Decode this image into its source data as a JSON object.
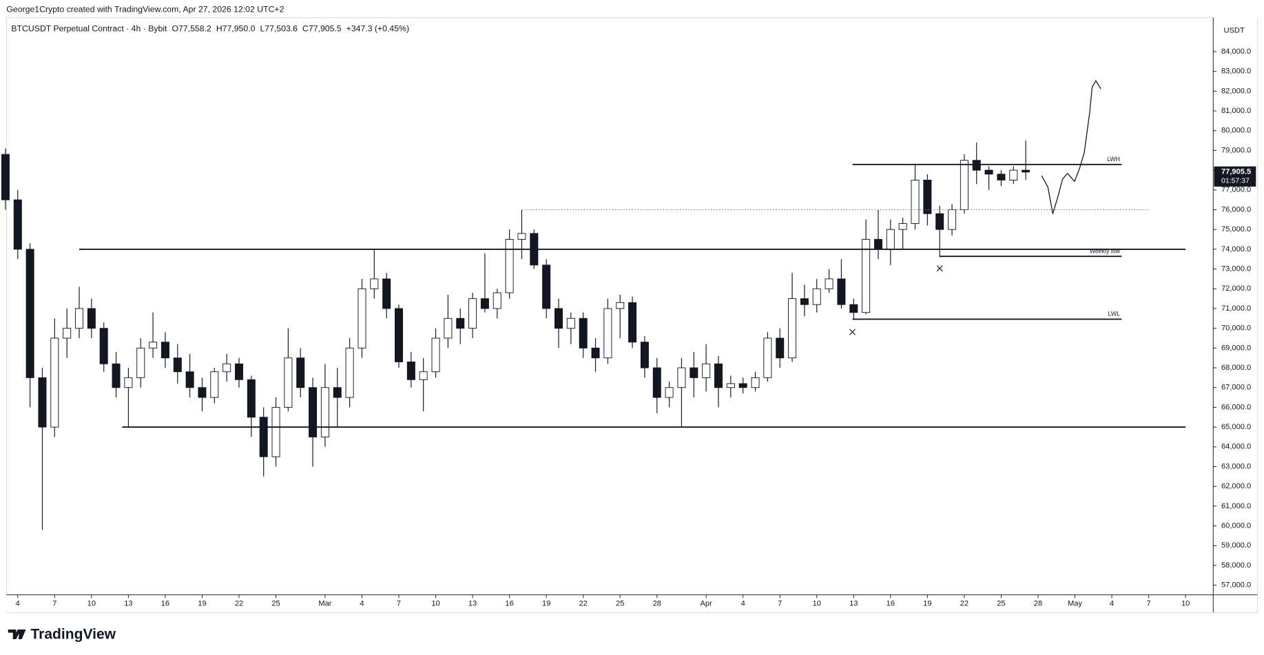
{
  "header": {
    "credit": "George1Crypto created with TradingView.com, Apr 27, 2026 12:02 UTC+2",
    "symbol": "BTCUSDT Perpetual Contract · 4h · Bybit",
    "ohlc": [
      "O77,558.2",
      "H77,950.0",
      "L77,503.6",
      "C77,905.5",
      "+347.3 (+0.45%)"
    ],
    "currency": "USDT",
    "logo": "TradingView"
  },
  "chart_data": {
    "type": "candlestick",
    "x": [
      3,
      4,
      5,
      6,
      7,
      8,
      9,
      10,
      11,
      12,
      13,
      14,
      15,
      16,
      17,
      18,
      19,
      20,
      21,
      22,
      23,
      24,
      25,
      26,
      27,
      28,
      29,
      30,
      31,
      32,
      33,
      34,
      35,
      36,
      37,
      38,
      39,
      40,
      41,
      42,
      43,
      44,
      45,
      46,
      47,
      48,
      49,
      50,
      51,
      52,
      53,
      54,
      55,
      56,
      57,
      58,
      59,
      60,
      61,
      62,
      63,
      64,
      65,
      66,
      67,
      68,
      69,
      70,
      71,
      72,
      73,
      74,
      75,
      76,
      77,
      78,
      79,
      80,
      81,
      82,
      83,
      84,
      85,
      86
    ],
    "open": [
      78800,
      76500,
      74000,
      67500,
      65000,
      69500,
      70000,
      71000,
      70000,
      68200,
      67000,
      67500,
      69000,
      69300,
      68500,
      67800,
      67000,
      66500,
      67800,
      68200,
      67400,
      65500,
      63500,
      66000,
      68500,
      67000,
      64500,
      67000,
      66500,
      69000,
      72000,
      72500,
      71000,
      68300,
      67400,
      67800,
      69500,
      70500,
      70000,
      71500,
      71000,
      71800,
      74500,
      74800,
      73200,
      71000,
      70000,
      70500,
      69000,
      68500,
      71000,
      71300,
      69300,
      68000,
      66500,
      67000,
      68000,
      67500,
      68200,
      67000,
      67200,
      67000,
      67500,
      69500,
      68500,
      71500,
      71200,
      72000,
      72500,
      71200,
      70800,
      74500,
      74000,
      75000,
      75300,
      77500,
      75800,
      75000,
      76000,
      78500,
      78000,
      77800,
      77500,
      78000
    ],
    "high": [
      79100,
      77000,
      74300,
      68000,
      70500,
      71000,
      72100,
      71500,
      70300,
      68800,
      68000,
      69500,
      70800,
      69800,
      69200,
      68700,
      67500,
      68000,
      68700,
      68500,
      67600,
      66000,
      66500,
      70000,
      69000,
      67500,
      68200,
      68000,
      69500,
      72500,
      74000,
      72800,
      71200,
      68800,
      68500,
      70000,
      71700,
      71000,
      71800,
      73800,
      72000,
      75000,
      76000,
      75000,
      73500,
      71500,
      70800,
      70800,
      69500,
      71500,
      71700,
      71600,
      69600,
      68500,
      67300,
      68500,
      68800,
      69200,
      68600,
      67600,
      67500,
      67800,
      69800,
      70000,
      72800,
      72200,
      72500,
      73000,
      73500,
      71500,
      75500,
      76000,
      75500,
      75600,
      78300,
      77800,
      76200,
      76300,
      78800,
      79400,
      78200,
      78000,
      78200,
      79500
    ],
    "low": [
      76000,
      73500,
      66000,
      59800,
      64500,
      68500,
      69500,
      69500,
      67800,
      66500,
      65000,
      67000,
      68500,
      68000,
      67200,
      66500,
      65800,
      66200,
      67300,
      67000,
      64500,
      62500,
      63000,
      65800,
      66500,
      63000,
      64000,
      65000,
      66000,
      68500,
      71500,
      70500,
      68000,
      67000,
      65800,
      67500,
      69000,
      69200,
      69500,
      70800,
      70500,
      71500,
      73500,
      73000,
      70500,
      69000,
      69200,
      68500,
      67800,
      68200,
      69500,
      69000,
      67500,
      65700,
      66000,
      65000,
      66500,
      66800,
      66000,
      66500,
      66700,
      66800,
      67300,
      68000,
      68300,
      70600,
      70800,
      71800,
      71000,
      70500,
      70700,
      73500,
      73200,
      74000,
      75000,
      75200,
      73600,
      74700,
      75800,
      77300,
      77000,
      77200,
      77300,
      77500
    ],
    "close": [
      76500,
      74000,
      67500,
      65000,
      69500,
      70000,
      71000,
      70000,
      68200,
      67000,
      67500,
      69000,
      69300,
      68500,
      67800,
      67000,
      66500,
      67800,
      68200,
      67400,
      65500,
      63500,
      66000,
      68500,
      67000,
      64500,
      67000,
      66500,
      69000,
      72000,
      72500,
      71000,
      68300,
      67400,
      67800,
      69500,
      70500,
      70000,
      71500,
      71000,
      71800,
      74500,
      74800,
      73200,
      71000,
      70000,
      70500,
      69000,
      68500,
      71000,
      71300,
      69300,
      68000,
      66500,
      67000,
      68000,
      67500,
      68200,
      67000,
      67200,
      67000,
      67500,
      69500,
      68500,
      71500,
      71200,
      72000,
      72500,
      71200,
      70800,
      74500,
      74000,
      75000,
      75300,
      77500,
      75800,
      75000,
      76000,
      78500,
      78000,
      77800,
      77500,
      78000,
      77905.5
    ],
    "up_color": "#ffffff",
    "down_color": "#131722",
    "wick_color": "#131722",
    "xlim": [
      3.08,
      101.25
    ],
    "ylim": [
      56510,
      85715
    ],
    "xticks": [
      4,
      7,
      10,
      13,
      16,
      19,
      22,
      25,
      {
        "value": 29,
        "label": "Mar"
      },
      {
        "value": 32,
        "label": "4"
      },
      {
        "value": 35,
        "label": "7"
      },
      {
        "value": 38,
        "label": "10"
      },
      {
        "value": 41,
        "label": "13"
      },
      {
        "value": 44,
        "label": "16"
      },
      {
        "value": 47,
        "label": "19"
      },
      {
        "value": 50,
        "label": "22"
      },
      {
        "value": 53,
        "label": "25"
      },
      {
        "value": 56,
        "label": "28"
      },
      {
        "value": 60,
        "label": "Apr"
      },
      {
        "value": 63,
        "label": "4"
      },
      {
        "value": 66,
        "label": "7"
      },
      {
        "value": 69,
        "label": "10"
      },
      {
        "value": 72,
        "label": "13"
      },
      {
        "value": 75,
        "label": "16"
      },
      {
        "value": 78,
        "label": "19"
      },
      {
        "value": 81,
        "label": "22"
      },
      {
        "value": 84,
        "label": "25"
      },
      {
        "value": 87,
        "label": "28"
      },
      {
        "value": 90,
        "label": "May"
      },
      {
        "value": 93,
        "label": "4"
      },
      {
        "value": 96,
        "label": "7"
      },
      {
        "value": 99,
        "label": "10"
      }
    ],
    "yticks": [
      {
        "value": 57000,
        "label": "57,000.0"
      },
      {
        "value": 58000,
        "label": "58,000.0"
      },
      {
        "value": 59000,
        "label": "59,000.0"
      },
      {
        "value": 60000,
        "label": "60,000.0"
      },
      {
        "value": 61000,
        "label": "61,000.0"
      },
      {
        "value": 62000,
        "label": "62,000.0"
      },
      {
        "value": 63000,
        "label": "63,000.0"
      },
      {
        "value": 64000,
        "label": "64,000.0"
      },
      {
        "value": 65000,
        "label": "65,000.0"
      },
      {
        "value": 66000,
        "label": "66,000.0"
      },
      {
        "value": 67000,
        "label": "67,000.0"
      },
      {
        "value": 68000,
        "label": "68,000.0"
      },
      {
        "value": 69000,
        "label": "69,000.0"
      },
      {
        "value": 70000,
        "label": "70,000.0"
      },
      {
        "value": 71000,
        "label": "71,000.0"
      },
      {
        "value": 72000,
        "label": "72,000.0"
      },
      {
        "value": 73000,
        "label": "73,000.0"
      },
      {
        "value": 74000,
        "label": "74,000.0"
      },
      {
        "value": 75000,
        "label": "75,000.0"
      },
      {
        "value": 76000,
        "label": "76,000.0"
      },
      {
        "value": 77000,
        "label": "77,000.0"
      },
      {
        "value": 78000,
        "label": "78,000.0"
      },
      {
        "value": 79000,
        "label": "79,000.0"
      },
      {
        "value": 80000,
        "label": "80,000.0"
      },
      {
        "value": 81000,
        "label": "81,000.0"
      },
      {
        "value": 82000,
        "label": "82,000.0"
      },
      {
        "value": 83000,
        "label": "83,000.0"
      },
      {
        "value": 84000,
        "label": "84,000.0"
      }
    ],
    "grid": false,
    "last_price": {
      "value": 77905.5,
      "label": "77,905.5",
      "countdown": "01:57:37"
    },
    "levels": [
      {
        "price": 74000,
        "x_start": 9.0,
        "x_end": 99.0,
        "style": "solid"
      },
      {
        "price": 65000,
        "x_start": 12.5,
        "x_end": 99.0,
        "style": "solid"
      },
      {
        "price": 78290,
        "x_start": 71.9,
        "x_end": 93.8,
        "style": "solid",
        "label": "LWH"
      },
      {
        "price": 73640,
        "x_start": 79.0,
        "x_end": 93.8,
        "style": "solid",
        "label": "Weekly low"
      },
      {
        "price": 70460,
        "x_start": 71.9,
        "x_end": 93.8,
        "style": "solid",
        "label": "LWL"
      },
      {
        "price": 76000,
        "x_start": 45.0,
        "x_end": 96.0,
        "style": "dotted"
      }
    ],
    "markers": {
      "x": [
        71.9,
        79.0
      ],
      "y": [
        69810,
        73030
      ]
    },
    "projection": {
      "x": [
        87.3,
        87.8,
        88.2,
        88.6,
        89.0,
        89.4,
        89.97,
        90.4,
        90.75,
        91.2,
        91.4,
        91.7,
        92.1
      ],
      "y": [
        77720,
        77150,
        75800,
        76620,
        77560,
        77840,
        77430,
        78130,
        78860,
        80900,
        82200,
        82530,
        82120
      ]
    }
  }
}
